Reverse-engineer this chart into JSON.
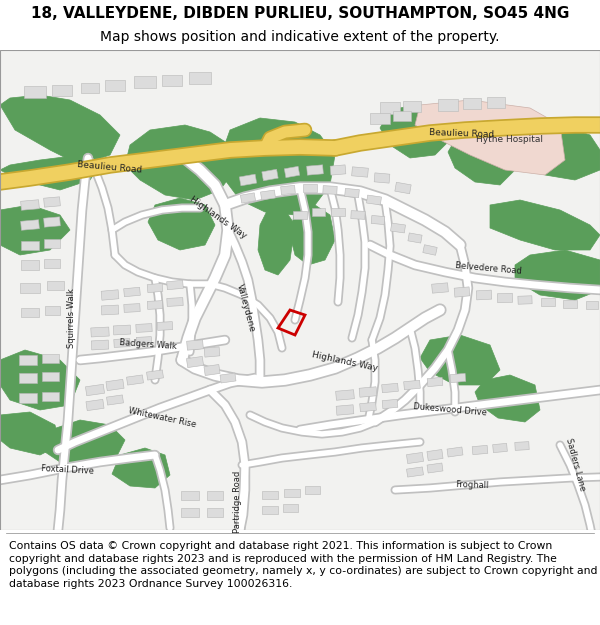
{
  "title_line1": "18, VALLEYDENE, DIBDEN PURLIEU, SOUTHAMPTON, SO45 4NG",
  "title_line2": "Map shows position and indicative extent of the property.",
  "footer_text": "Contains OS data © Crown copyright and database right 2021. This information is subject to Crown copyright and database rights 2023 and is reproduced with the permission of HM Land Registry. The polygons (including the associated geometry, namely x, y co-ordinates) are subject to Crown copyright and database rights 2023 Ordnance Survey 100026316.",
  "title_fontsize": 11,
  "subtitle_fontsize": 10,
  "footer_fontsize": 7.8,
  "green_color": "#5a9e5a",
  "building_color": "#dcdcdc",
  "building_outline": "#b8b8b8",
  "yellow_road_color": "#f0d060",
  "yellow_road_outline": "#c8a830",
  "pink_area_color": "#f0d8d0",
  "highlight_color": "#cc0000",
  "map_bg": "#f2f2f0"
}
